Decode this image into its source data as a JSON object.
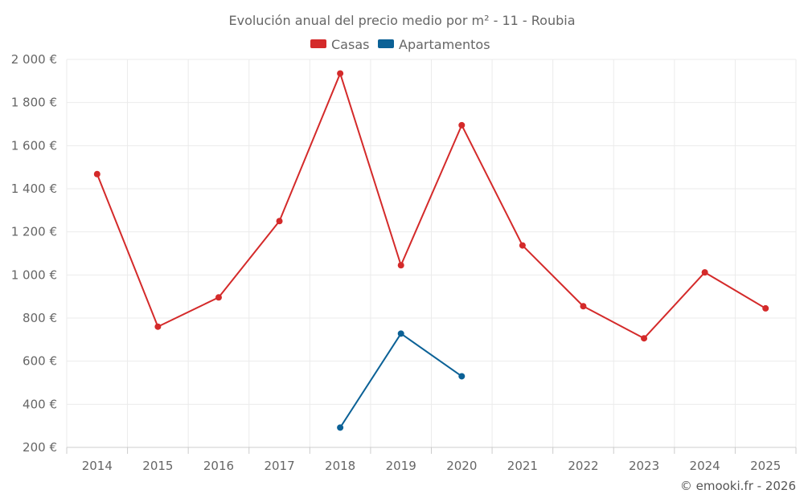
{
  "chart_data": {
    "type": "line",
    "title": "Evolución anual del precio medio por m² - 11 - Roubia",
    "categories": [
      "2014",
      "2015",
      "2016",
      "2017",
      "2018",
      "2019",
      "2020",
      "2021",
      "2022",
      "2023",
      "2024",
      "2025"
    ],
    "ylim": [
      200,
      2000
    ],
    "yticks": [
      200,
      400,
      600,
      800,
      1000,
      1200,
      1400,
      1600,
      1800,
      2000
    ],
    "ytick_labels": [
      "200 €",
      "400 €",
      "600 €",
      "800 €",
      "1 000 €",
      "1 200 €",
      "1 400 €",
      "1 600 €",
      "1 800 €",
      "2 000 €"
    ],
    "grid": true,
    "legend_position": "top-center",
    "series": [
      {
        "name": "Casas",
        "color": "#d42a2a",
        "values": [
          1468,
          760,
          896,
          1250,
          1935,
          1045,
          1695,
          1137,
          855,
          706,
          1012,
          845
        ]
      },
      {
        "name": "Apartamentos",
        "color": "#0b6196",
        "values": [
          null,
          null,
          null,
          null,
          292,
          728,
          530,
          null,
          null,
          null,
          null,
          null
        ]
      }
    ]
  },
  "credit": "© emooki.fr - 2026"
}
